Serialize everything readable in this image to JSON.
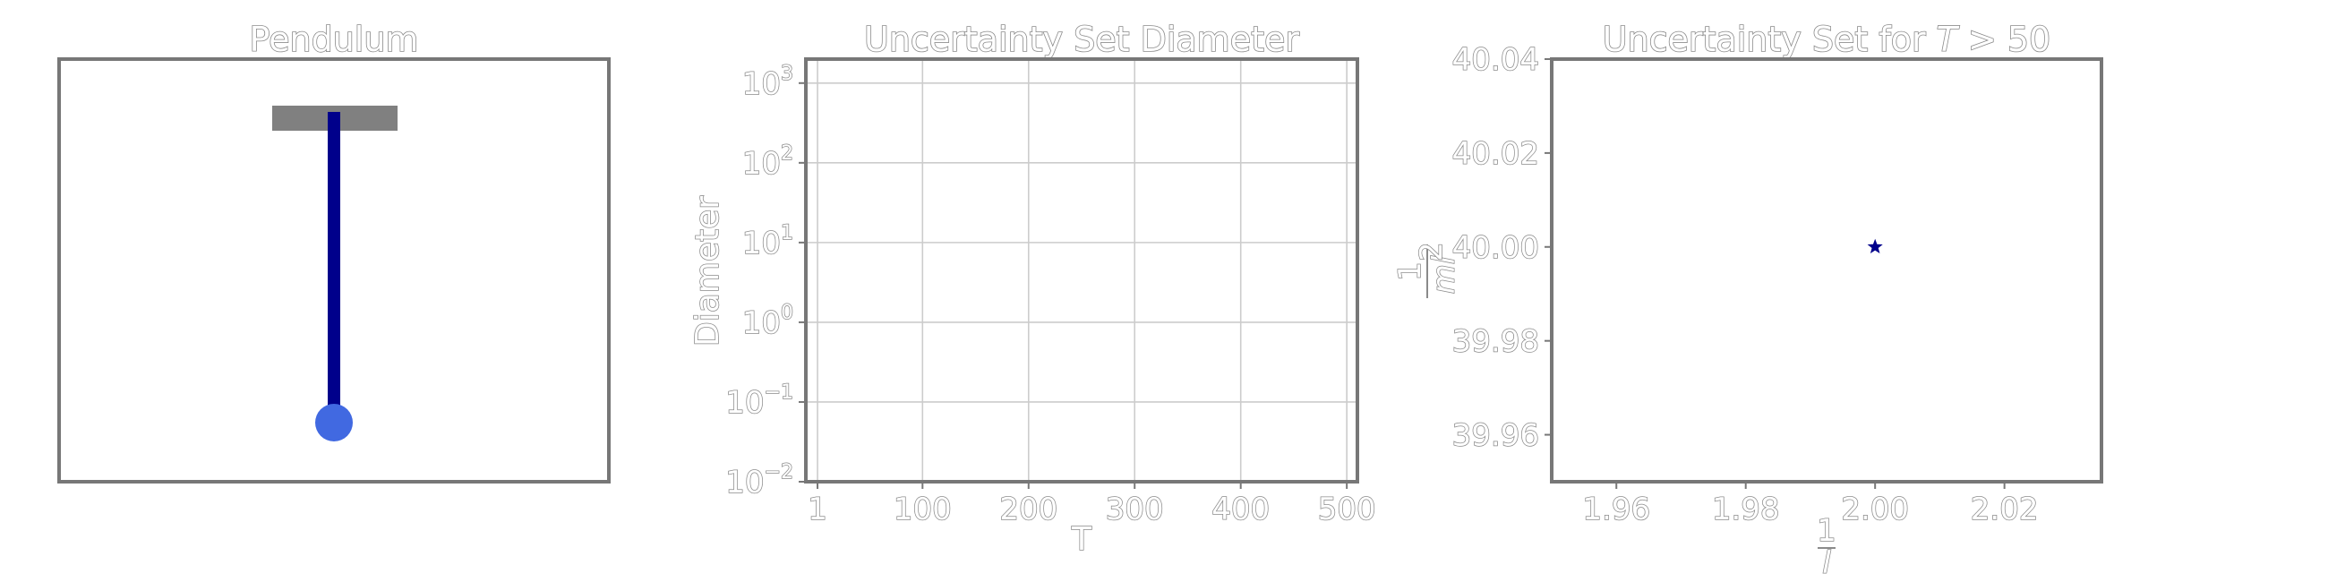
{
  "chart_data": [
    {
      "type": "diagram",
      "title": "Pendulum",
      "elements": [
        "pivot-bar",
        "rod",
        "bob"
      ],
      "colors": {
        "pivot": "#808080",
        "rod": "#00008b",
        "bob": "#4169e1"
      }
    },
    {
      "type": "line",
      "title": "Uncertainty Set Diameter",
      "xlabel": "T",
      "ylabel": "Diameter",
      "yscale": "log",
      "xlim": [
        -10,
        510
      ],
      "ylim": [
        0.01,
        2000
      ],
      "x_ticks": [
        1,
        100,
        200,
        300,
        400,
        500
      ],
      "y_ticks": [
        0.01,
        0.1,
        1,
        10,
        100,
        1000
      ],
      "y_tick_labels": [
        {
          "base": "10",
          "exp": "−2"
        },
        {
          "base": "10",
          "exp": "−1"
        },
        {
          "base": "10",
          "exp": "0"
        },
        {
          "base": "10",
          "exp": "1"
        },
        {
          "base": "10",
          "exp": "2"
        },
        {
          "base": "10",
          "exp": "3"
        }
      ],
      "grid": true,
      "series": []
    },
    {
      "type": "scatter",
      "title_main": "Uncertainty Set for ",
      "title_var": "T",
      "title_tail": " > 50",
      "xlabel": "1/l",
      "ylabel": "1/(ml²)",
      "xlim": [
        1.95,
        2.035
      ],
      "ylim": [
        39.95,
        40.04
      ],
      "x_ticks": [
        1.96,
        1.98,
        2.0,
        2.02
      ],
      "x_tick_labels": [
        "1.96",
        "1.98",
        "2.00",
        "2.02"
      ],
      "y_ticks": [
        39.96,
        39.98,
        40.0,
        40.02,
        40.04
      ],
      "y_tick_labels": [
        "39.96",
        "39.98",
        "40.00",
        "40.02",
        "40.04"
      ],
      "grid": false,
      "points": [
        {
          "x": 2.0,
          "y": 40.0
        }
      ],
      "marker": "star",
      "marker_color": "#00008b"
    }
  ]
}
